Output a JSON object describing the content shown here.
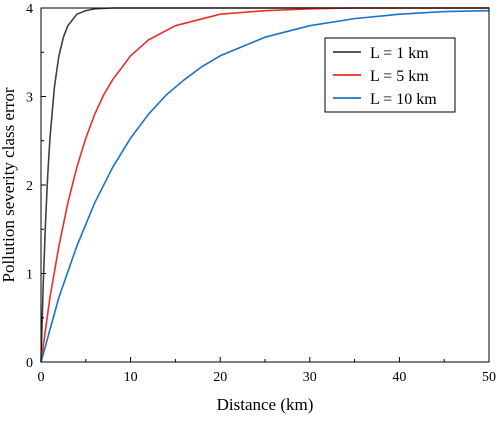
{
  "chart_data": {
    "type": "line",
    "xlabel": "Distance (km)",
    "ylabel": "Pollution severity class error",
    "xlim": [
      0,
      50
    ],
    "ylim": [
      0,
      4
    ],
    "x_ticks": [
      0,
      10,
      20,
      30,
      40,
      50
    ],
    "y_ticks": [
      0,
      1,
      2,
      3,
      4
    ],
    "x_tick_labels": [
      "0",
      "10",
      "20",
      "30",
      "40",
      "50"
    ],
    "y_tick_labels": [
      "0",
      "1",
      "2",
      "3",
      "4"
    ],
    "grid": false,
    "legend_position": "top-right",
    "series": [
      {
        "name": "L = 1 km",
        "color": "#404040",
        "x": [
          0,
          0.25,
          0.5,
          0.75,
          1,
          1.5,
          2,
          2.5,
          3,
          4,
          5,
          6,
          8,
          10,
          20,
          30,
          40,
          50
        ],
        "y": [
          0,
          0.88,
          1.57,
          2.11,
          2.53,
          3.11,
          3.46,
          3.67,
          3.8,
          3.93,
          3.97,
          3.99,
          4.0,
          4.0,
          4.0,
          4.0,
          4.0,
          4.0
        ]
      },
      {
        "name": "L = 5 km",
        "color": "#e8302a",
        "x": [
          0,
          1,
          2,
          3,
          4,
          5,
          6,
          7,
          8,
          10,
          12,
          15,
          20,
          25,
          30,
          35,
          40,
          45,
          50
        ],
        "y": [
          0,
          0.73,
          1.31,
          1.8,
          2.2,
          2.53,
          2.8,
          3.02,
          3.19,
          3.46,
          3.64,
          3.8,
          3.93,
          3.97,
          3.99,
          4.0,
          4.0,
          4.0,
          4.0
        ]
      },
      {
        "name": "L = 10 km",
        "color": "#1a73c8",
        "x": [
          0,
          2,
          4,
          6,
          8,
          10,
          12,
          14,
          16,
          18,
          20,
          25,
          30,
          35,
          40,
          45,
          50
        ],
        "y": [
          0,
          0.73,
          1.31,
          1.8,
          2.2,
          2.53,
          2.8,
          3.02,
          3.19,
          3.34,
          3.46,
          3.67,
          3.8,
          3.88,
          3.93,
          3.96,
          3.97
        ]
      }
    ]
  }
}
